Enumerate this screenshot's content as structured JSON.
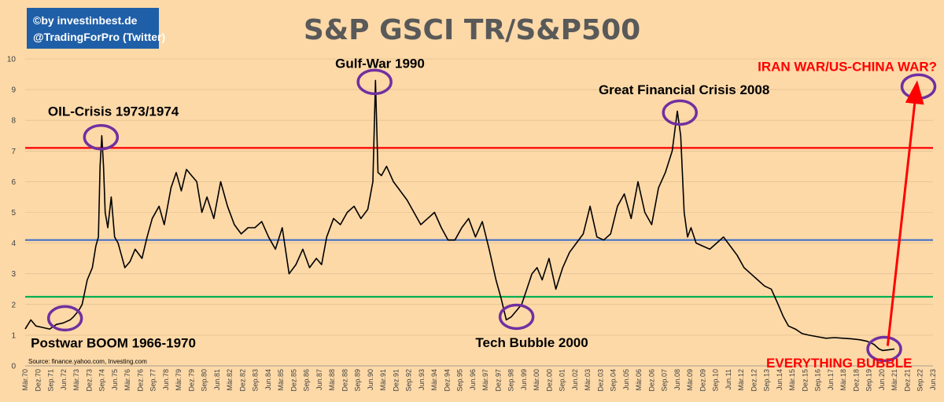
{
  "credit": {
    "line1": "©by investinbest.de",
    "line2": "@TradingForPro (Twitter)"
  },
  "source": "Source: finance.yahoo.com, Investing.com",
  "colors": {
    "background": "#fdd9a8",
    "series": "#000000",
    "line_red": "#ff0000",
    "line_blue": "#4472c4",
    "line_green": "#00b050",
    "circles": "#7030a0",
    "arrow": "#ff0000",
    "credit_bg": "#1f5fa8"
  },
  "chart_data": {
    "type": "line",
    "title": "S&P GSCI TR/S&P500",
    "xlabel": "",
    "ylabel": "",
    "ylim": [
      0,
      10
    ],
    "xlim": [
      1970.17,
      2023.25
    ],
    "yticks": [
      "0",
      "1",
      "2",
      "3",
      "4",
      "5",
      "6",
      "7",
      "8",
      "9",
      "10"
    ],
    "xticks": [
      "Mär.70",
      "Dez.70",
      "Sep.71",
      "Jun.72",
      "Mär.73",
      "Dez.73",
      "Sep.74",
      "Jun.75",
      "Mär.76",
      "Dez.76",
      "Sep.77",
      "Jun.78",
      "Mär.79",
      "Dez.79",
      "Sep.80",
      "Jun.81",
      "Mär.82",
      "Dez.82",
      "Sep.83",
      "Jun.84",
      "Mär.85",
      "Dez.85",
      "Sep.86",
      "Jun.87",
      "Mär.88",
      "Dez.88",
      "Sep.89",
      "Jun.90",
      "Mär.91",
      "Dez.91",
      "Sep.92",
      "Jun.93",
      "Mär.94",
      "Dez.94",
      "Sep.95",
      "Jun.96",
      "Mär.97",
      "Dez.97",
      "Sep.98",
      "Jun.99",
      "Mär.00",
      "Dez.00",
      "Sep.01",
      "Jun.02",
      "Mär.03",
      "Dez.03",
      "Sep.04",
      "Jun.05",
      "Mär.06",
      "Dez.06",
      "Sep.07",
      "Jun.08",
      "Mär.09",
      "Dez.09",
      "Sep.10",
      "Jun.11",
      "Mär.12",
      "Dez.12",
      "Sep.13",
      "Jun.14",
      "Mär.15",
      "Dez.15",
      "Sep.16",
      "Jun.17",
      "Mär.18",
      "Dez.18",
      "Sep.19",
      "Jun.20",
      "Mär.21",
      "Dez.21",
      "Sep.22",
      "Jun.23"
    ],
    "grid": true,
    "legend": "none",
    "series": [
      {
        "x": [
          1970.17,
          1970.5,
          1970.8,
          1971.2,
          1971.6,
          1972.0,
          1972.4,
          1972.8,
          1973.0,
          1973.3,
          1973.5,
          1973.8,
          1974.1,
          1974.3,
          1974.45,
          1974.55,
          1974.65,
          1974.75,
          1974.85,
          1975.0,
          1975.2,
          1975.4,
          1975.6,
          1975.8,
          1976.0,
          1976.3,
          1976.6,
          1977.0,
          1977.3,
          1977.6,
          1978.0,
          1978.3,
          1978.7,
          1979.0,
          1979.3,
          1979.6,
          1979.9,
          1980.2,
          1980.5,
          1980.8,
          1981.2,
          1981.6,
          1982.0,
          1982.4,
          1982.8,
          1983.2,
          1983.6,
          1984.0,
          1984.4,
          1984.8,
          1985.2,
          1985.6,
          1986.0,
          1986.4,
          1986.8,
          1987.2,
          1987.5,
          1987.8,
          1988.2,
          1988.6,
          1989.0,
          1989.4,
          1989.8,
          1990.2,
          1990.5,
          1990.65,
          1990.8,
          1991.0,
          1991.3,
          1991.7,
          1992.1,
          1992.5,
          1992.9,
          1993.3,
          1993.7,
          1994.1,
          1994.5,
          1994.9,
          1995.3,
          1995.7,
          1996.1,
          1996.5,
          1996.9,
          1997.3,
          1997.7,
          1998.0,
          1998.3,
          1998.6,
          1998.9,
          1999.2,
          1999.5,
          1999.8,
          2000.1,
          2000.4,
          2000.8,
          2001.2,
          2001.6,
          2002.0,
          2002.4,
          2002.8,
          2003.2,
          2003.6,
          2004.0,
          2004.4,
          2004.8,
          2005.2,
          2005.6,
          2006.0,
          2006.4,
          2006.8,
          2007.2,
          2007.6,
          2008.0,
          2008.3,
          2008.5,
          2008.7,
          2008.9,
          2009.1,
          2009.4,
          2009.8,
          2010.2,
          2010.6,
          2011.0,
          2011.4,
          2011.8,
          2012.2,
          2012.6,
          2013.0,
          2013.4,
          2013.8,
          2014.2,
          2014.5,
          2014.8,
          2015.2,
          2015.6,
          2016.0,
          2016.5,
          2017.0,
          2017.5,
          2018.0,
          2018.5,
          2019.0,
          2019.4,
          2019.8,
          2020.1,
          2020.3,
          2020.6,
          2021.0
        ],
        "values": [
          1.2,
          1.5,
          1.3,
          1.25,
          1.2,
          1.35,
          1.4,
          1.5,
          1.6,
          1.8,
          2.0,
          2.8,
          3.2,
          3.9,
          4.2,
          6.5,
          7.5,
          6.5,
          5.0,
          4.5,
          5.5,
          4.2,
          4.0,
          3.6,
          3.2,
          3.4,
          3.8,
          3.5,
          4.2,
          4.8,
          5.2,
          4.6,
          5.8,
          6.3,
          5.7,
          6.4,
          6.2,
          6.0,
          5.0,
          5.5,
          4.8,
          6.0,
          5.2,
          4.6,
          4.3,
          4.5,
          4.5,
          4.7,
          4.2,
          3.8,
          4.5,
          3.0,
          3.3,
          3.8,
          3.2,
          3.5,
          3.3,
          4.2,
          4.8,
          4.6,
          5.0,
          5.2,
          4.8,
          5.1,
          6.0,
          9.3,
          6.3,
          6.2,
          6.5,
          6.0,
          5.7,
          5.4,
          5.0,
          4.6,
          4.8,
          5.0,
          4.5,
          4.1,
          4.1,
          4.5,
          4.8,
          4.2,
          4.7,
          3.8,
          2.8,
          2.2,
          1.5,
          1.6,
          1.8,
          2.0,
          2.5,
          3.0,
          3.2,
          2.8,
          3.5,
          2.5,
          3.2,
          3.7,
          4.0,
          4.3,
          5.2,
          4.2,
          4.1,
          4.3,
          5.2,
          5.6,
          4.8,
          6.0,
          5.0,
          4.6,
          5.8,
          6.3,
          7.0,
          8.3,
          7.5,
          5.0,
          4.2,
          4.5,
          4.0,
          3.9,
          3.8,
          4.0,
          4.2,
          3.9,
          3.6,
          3.2,
          3.0,
          2.8,
          2.6,
          2.5,
          2.0,
          1.6,
          1.3,
          1.2,
          1.05,
          1.0,
          0.95,
          0.9,
          0.92,
          0.9,
          0.88,
          0.85,
          0.8,
          0.7,
          0.55,
          0.5,
          0.52,
          0.55
        ]
      }
    ],
    "reference_lines": [
      {
        "value": 7.1,
        "color": "#ff0000"
      },
      {
        "value": 4.1,
        "color": "#4472c4"
      },
      {
        "value": 2.25,
        "color": "#00b050"
      }
    ],
    "annotations": [
      {
        "text": "Postwar BOOM 1966-1970",
        "x": 1970.5,
        "y": 0.6,
        "color": "#000000"
      },
      {
        "text": "OIL-Crisis 1973/1974",
        "x": 1971.5,
        "y": 8.15,
        "color": "#000000"
      },
      {
        "text": "Gulf-War 1990",
        "x": 1988.3,
        "y": 9.7,
        "color": "#000000"
      },
      {
        "text": "Tech Bubble 2000",
        "x": 1996.5,
        "y": 0.62,
        "color": "#000000"
      },
      {
        "text": "Great Financial Crisis 2008",
        "x": 2003.7,
        "y": 8.85,
        "color": "#000000"
      },
      {
        "text": "IRAN WAR/US-CHINA WAR?",
        "x": 2013.0,
        "y": 9.6,
        "color": "#ff0000"
      },
      {
        "text": "EVERYTHING BUBBLE",
        "x": 2013.5,
        "y": -0.05,
        "color": "#ff0000"
      }
    ],
    "highlight_circles": [
      {
        "x": 1972.5,
        "y": 1.55
      },
      {
        "x": 1974.6,
        "y": 7.45
      },
      {
        "x": 1990.6,
        "y": 9.25
      },
      {
        "x": 1998.9,
        "y": 1.6
      },
      {
        "x": 2008.45,
        "y": 8.25
      },
      {
        "x": 2020.4,
        "y": 0.55
      },
      {
        "x": 2022.4,
        "y": 9.1
      }
    ],
    "arrow": {
      "from": [
        2020.6,
        0.65
      ],
      "to": [
        2022.3,
        9.15
      ]
    }
  }
}
